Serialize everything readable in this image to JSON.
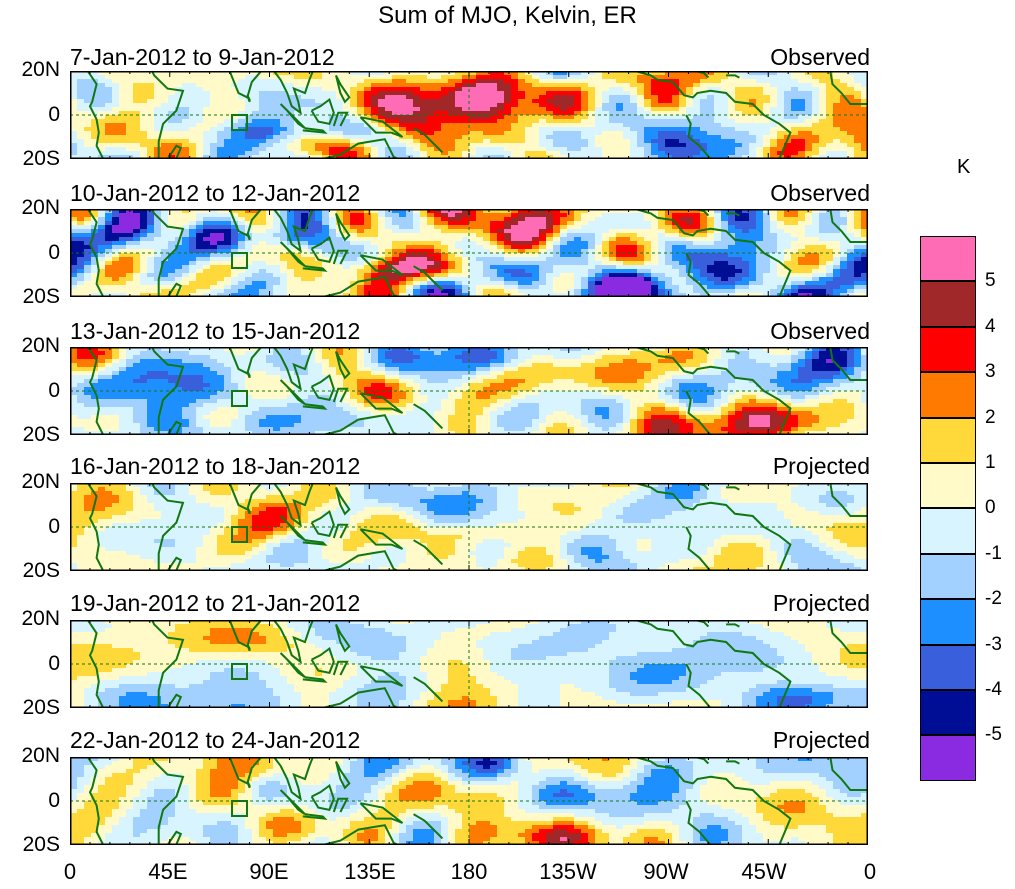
{
  "title": "Sum of MJO, Kelvin, ER",
  "panels": [
    {
      "dates": "7-Jan-2012 to 9-Jan-2012",
      "status": "Observed",
      "intensity": 1.0
    },
    {
      "dates": "10-Jan-2012 to 12-Jan-2012",
      "status": "Observed",
      "intensity": 0.95
    },
    {
      "dates": "13-Jan-2012 to 15-Jan-2012",
      "status": "Observed",
      "intensity": 0.8
    },
    {
      "dates": "16-Jan-2012 to 18-Jan-2012",
      "status": "Projected",
      "intensity": 0.5
    },
    {
      "dates": "19-Jan-2012 to 21-Jan-2012",
      "status": "Projected",
      "intensity": 0.6
    },
    {
      "dates": "22-Jan-2012 to 24-Jan-2012",
      "status": "Projected",
      "intensity": 0.7
    }
  ],
  "y_ticks": [
    "20N",
    "0",
    "20S"
  ],
  "x_ticks": [
    "0",
    "45E",
    "90E",
    "135E",
    "180",
    "135W",
    "90W",
    "45W",
    "0"
  ],
  "colorbar": {
    "unit": "K",
    "labels": [
      "5",
      "4",
      "3",
      "2",
      "1",
      "0",
      "-1",
      "-2",
      "-3",
      "-4",
      "-5"
    ],
    "colors": [
      "#ff6cb6",
      "#a02828",
      "#ff0000",
      "#ff7a00",
      "#ffd93a",
      "#fffac8",
      "#d8f4ff",
      "#a3d1ff",
      "#1e8fff",
      "#3a5fdc",
      "#000e96",
      "#8a2be2"
    ]
  },
  "colors": {
    "coast": "#117711",
    "box": "#117711"
  }
}
